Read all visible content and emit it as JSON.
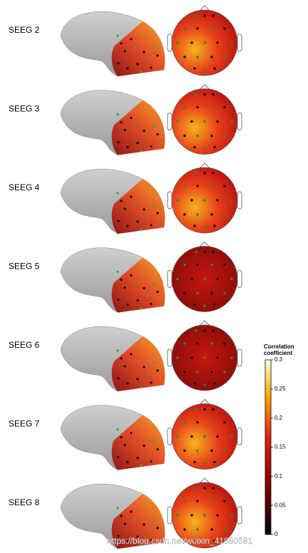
{
  "rows": [
    {
      "label": "SEEG 2"
    },
    {
      "label": "SEEG 3"
    },
    {
      "label": "SEEG 4"
    },
    {
      "label": "SEEG 5"
    },
    {
      "label": "SEEG 6"
    },
    {
      "label": "SEEG 7"
    },
    {
      "label": "SEEG 8"
    }
  ],
  "colorbar": {
    "title_lines": [
      "Correlation",
      "coefficient"
    ],
    "lim": [
      0,
      0.3
    ],
    "ticks": [
      0,
      0.05,
      0.1,
      0.15,
      0.2,
      0.25,
      0.3
    ]
  },
  "watermark": "https://blog.csdn.net/weixin_41880581"
}
